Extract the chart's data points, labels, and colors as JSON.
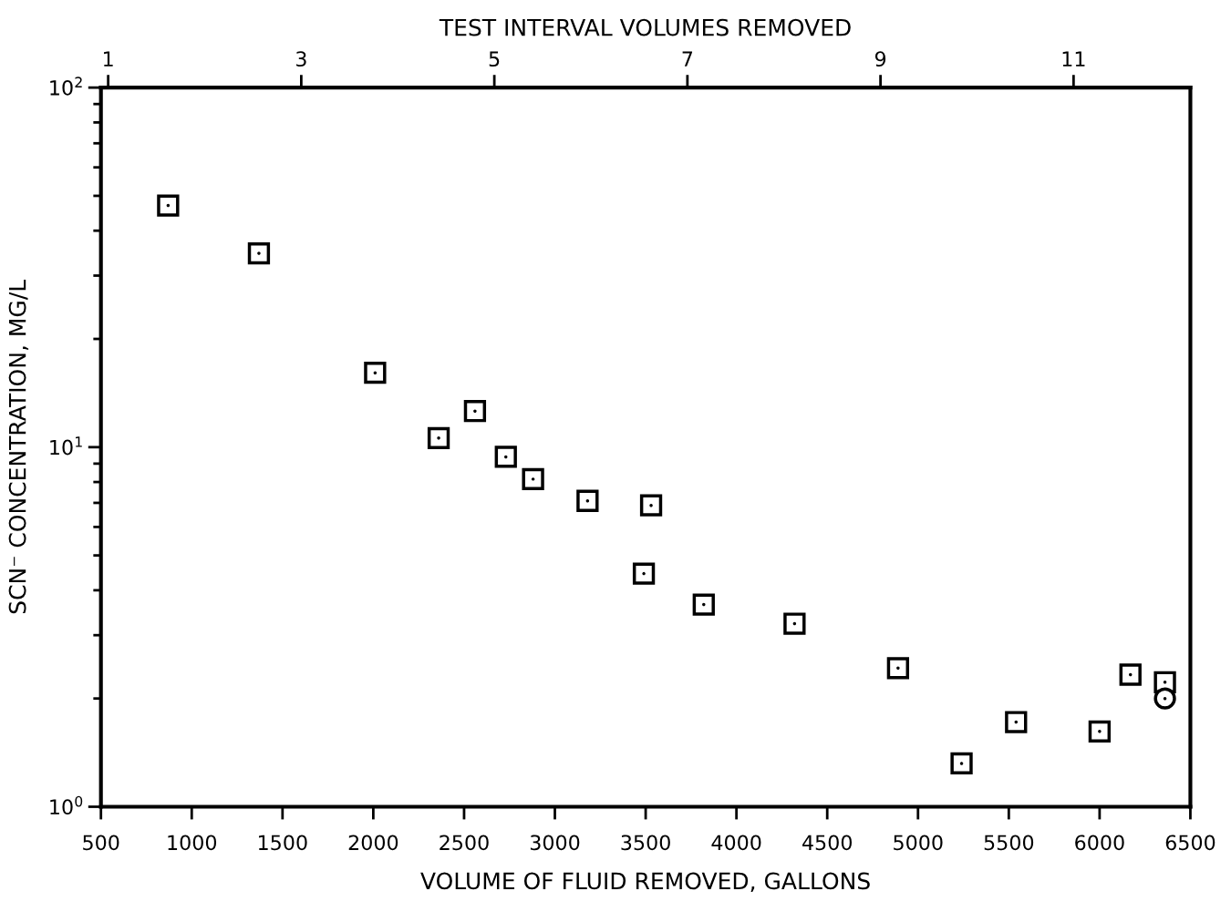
{
  "chart_data": {
    "type": "scatter",
    "xlabel": "VOLUME OF FLUID REMOVED, GALLONS",
    "ylabel": "SCN⁻ CONCENTRATION, MG/L",
    "x2label": "TEST INTERVAL VOLUMES REMOVED",
    "log": "y",
    "xlim": [
      500,
      6500
    ],
    "xticks": [
      500,
      1000,
      1500,
      2000,
      2500,
      3000,
      3500,
      4000,
      4500,
      5000,
      5500,
      6000,
      6500
    ],
    "ylim": [
      1,
      100
    ],
    "yticks": [
      {
        "value": 1,
        "label": "10$^{0}$"
      },
      {
        "value": 10,
        "label": "10$^{1}$"
      },
      {
        "value": 100,
        "label": "10$^{2}$"
      }
    ],
    "x2lim": [
      0.925,
      12.21
    ],
    "x2ticks": [
      1,
      3,
      5,
      7,
      9,
      11
    ],
    "grid": false,
    "legend": false,
    "series": [
      {
        "color": "#000000",
        "marker": "square",
        "x": [
          870,
          1370,
          2010,
          2360,
          2560,
          2730,
          2880,
          3180,
          3530,
          3490,
          3820,
          4320,
          4890,
          5240,
          5540,
          6000,
          6170,
          6360
        ],
        "values": [
          47,
          34.6,
          16.1,
          10.6,
          12.6,
          9.4,
          8.15,
          7.09,
          6.89,
          4.45,
          3.65,
          3.23,
          2.43,
          1.32,
          1.72,
          1.62,
          2.33,
          2.22
        ]
      },
      {
        "color": "#000000",
        "marker": "circle",
        "x": [
          6360
        ],
        "values": [
          2.0
        ]
      }
    ]
  }
}
